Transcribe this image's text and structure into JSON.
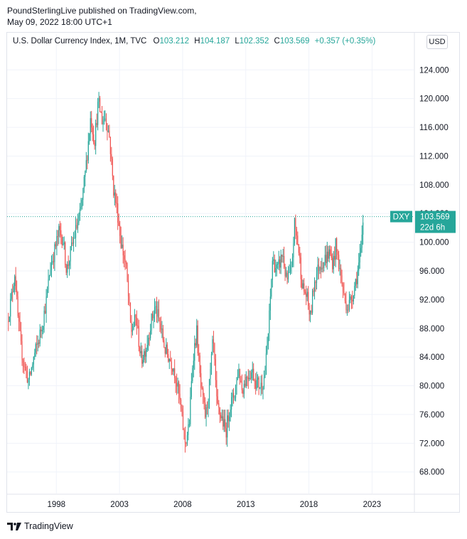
{
  "header": {
    "line1": "PoundSterlingLive published on TradingView.com,",
    "line2": "May 09, 2022 18:00 UTC+1"
  },
  "legend": {
    "title": "U.S. Dollar Currency Index, 1M, TVC",
    "o_label": "O",
    "o_value": "103.212",
    "h_label": "H",
    "h_value": "104.187",
    "l_label": "L",
    "l_value": "102.352",
    "c_label": "C",
    "c_value": "103.569",
    "change": "+0.357 (+0.35%)"
  },
  "currency_button": "USD",
  "footer": {
    "brand": "TradingView"
  },
  "colors": {
    "up": "#26a69a",
    "down": "#ef5350",
    "grid": "#f0f3fa",
    "price_line": "#26a69a"
  },
  "chart_data": {
    "type": "candlestick",
    "title": "U.S. Dollar Currency Index, 1M, TVC",
    "ylim": [
      65.0,
      127.0
    ],
    "xlim": [
      1994.1,
      2026.3
    ],
    "yticks": [
      "124.000",
      "120.000",
      "116.000",
      "112.000",
      "108.000",
      "104.000",
      "100.000",
      "96.000",
      "92.000",
      "88.000",
      "84.000",
      "80.000",
      "76.000",
      "72.000",
      "68.000"
    ],
    "ytick_values": [
      124,
      120,
      116,
      112,
      108,
      104,
      100,
      96,
      92,
      88,
      84,
      80,
      76,
      72,
      68
    ],
    "xticks": [
      "1998",
      "2003",
      "2008",
      "2013",
      "2018",
      "2023"
    ],
    "xtick_values": [
      1998,
      2003,
      2008,
      2013,
      2018,
      2023
    ],
    "last_price": {
      "symbol": "DXY",
      "value": "103.569",
      "countdown": "22d 6h",
      "y": 103.569
    },
    "series_path": [
      [
        1994.2,
        89.0
      ],
      [
        1994.5,
        92.0
      ],
      [
        1994.8,
        96.0
      ],
      [
        1995.0,
        90.0
      ],
      [
        1995.3,
        85.0
      ],
      [
        1995.6,
        82.5
      ],
      [
        1995.9,
        80.5
      ],
      [
        1996.3,
        84.0
      ],
      [
        1996.7,
        86.5
      ],
      [
        1997.0,
        89.0
      ],
      [
        1997.3,
        92.0
      ],
      [
        1997.6,
        96.5
      ],
      [
        1997.9,
        98.5
      ],
      [
        1998.3,
        101.5
      ],
      [
        1998.6,
        100.5
      ],
      [
        1998.9,
        96.0
      ],
      [
        1999.2,
        98.5
      ],
      [
        1999.6,
        101.5
      ],
      [
        2000.0,
        104.0
      ],
      [
        2000.4,
        110.0
      ],
      [
        2000.8,
        117.5
      ],
      [
        2001.1,
        114.0
      ],
      [
        2001.4,
        119.5
      ],
      [
        2001.7,
        117.0
      ],
      [
        2002.0,
        117.5
      ],
      [
        2002.3,
        114.5
      ],
      [
        2002.6,
        107.5
      ],
      [
        2002.9,
        104.5
      ],
      [
        2003.2,
        100.0
      ],
      [
        2003.6,
        96.5
      ],
      [
        2004.0,
        87.5
      ],
      [
        2004.4,
        89.5
      ],
      [
        2004.8,
        83.5
      ],
      [
        2005.2,
        85.5
      ],
      [
        2005.6,
        89.0
      ],
      [
        2005.9,
        91.0
      ],
      [
        2006.3,
        88.5
      ],
      [
        2006.7,
        85.0
      ],
      [
        2007.0,
        84.0
      ],
      [
        2007.4,
        82.5
      ],
      [
        2007.8,
        78.5
      ],
      [
        2008.1,
        74.5
      ],
      [
        2008.3,
        72.0
      ],
      [
        2008.6,
        74.5
      ],
      [
        2008.9,
        84.0
      ],
      [
        2009.2,
        87.5
      ],
      [
        2009.5,
        80.0
      ],
      [
        2009.9,
        75.5
      ],
      [
        2010.2,
        80.0
      ],
      [
        2010.5,
        86.5
      ],
      [
        2010.8,
        77.0
      ],
      [
        2011.2,
        75.5
      ],
      [
        2011.5,
        73.5
      ],
      [
        2011.8,
        77.0
      ],
      [
        2012.2,
        79.0
      ],
      [
        2012.5,
        82.5
      ],
      [
        2012.8,
        79.5
      ],
      [
        2013.2,
        81.5
      ],
      [
        2013.6,
        82.0
      ],
      [
        2013.9,
        80.5
      ],
      [
        2014.3,
        80.0
      ],
      [
        2014.6,
        81.5
      ],
      [
        2014.9,
        88.0
      ],
      [
        2015.2,
        97.5
      ],
      [
        2015.6,
        96.0
      ],
      [
        2016.0,
        98.5
      ],
      [
        2016.3,
        94.5
      ],
      [
        2016.7,
        96.0
      ],
      [
        2016.95,
        102.5
      ],
      [
        2017.2,
        100.0
      ],
      [
        2017.6,
        93.5
      ],
      [
        2017.9,
        92.5
      ],
      [
        2018.2,
        89.5
      ],
      [
        2018.5,
        94.5
      ],
      [
        2018.9,
        96.8
      ],
      [
        2019.3,
        97.5
      ],
      [
        2019.7,
        98.5
      ],
      [
        2020.0,
        97.0
      ],
      [
        2020.2,
        99.5
      ],
      [
        2020.5,
        96.5
      ],
      [
        2020.9,
        92.0
      ],
      [
        2021.2,
        91.0
      ],
      [
        2021.5,
        92.5
      ],
      [
        2021.9,
        95.5
      ],
      [
        2022.2,
        98.5
      ],
      [
        2022.4,
        103.6
      ]
    ]
  }
}
